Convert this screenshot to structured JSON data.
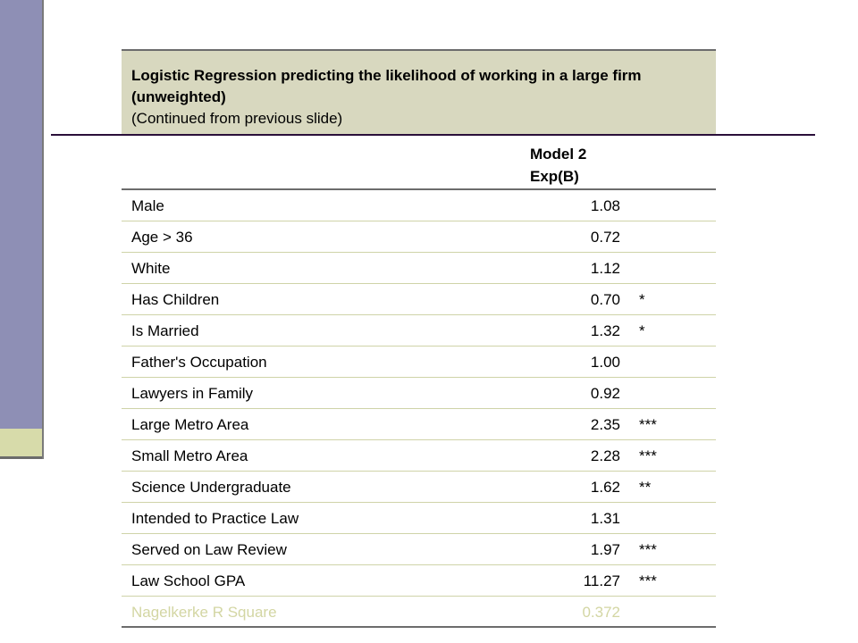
{
  "header": {
    "title": "Logistic Regression predicting the likelihood of working in a large firm (unweighted)",
    "subtitle": "(Continued from previous slide)"
  },
  "column": {
    "model": "Model 2",
    "stat": "Exp(B)"
  },
  "rows": [
    {
      "label": "Male",
      "value": "1.08",
      "sig": ""
    },
    {
      "label": "Age > 36",
      "value": "0.72",
      "sig": ""
    },
    {
      "label": "White",
      "value": "1.12",
      "sig": ""
    },
    {
      "label": "Has Children",
      "value": "0.70",
      "sig": "*"
    },
    {
      "label": "Is Married",
      "value": "1.32",
      "sig": "*"
    },
    {
      "label": "Father's Occupation",
      "value": "1.00",
      "sig": ""
    },
    {
      "label": "Lawyers in Family",
      "value": "0.92",
      "sig": ""
    },
    {
      "label": "Large Metro Area",
      "value": "2.35",
      "sig": "***"
    },
    {
      "label": "Small Metro Area",
      "value": "2.28",
      "sig": "***"
    },
    {
      "label": "Science Undergraduate",
      "value": "1.62",
      "sig": "**"
    },
    {
      "label": "Intended to Practice Law",
      "value": "1.31",
      "sig": ""
    },
    {
      "label": "Served on Law Review",
      "value": "1.97",
      "sig": "***"
    },
    {
      "label": "Law School GPA",
      "value": "11.27",
      "sig": "***"
    },
    {
      "label": "Nagelkerke R Square",
      "value": "0.372",
      "sig": ""
    }
  ],
  "colors": {
    "sidebar": "#8e8fb5",
    "accent_block": "#d7dbaa",
    "header_bg": "#d8d8bf",
    "title_rule": "#2a0f3a",
    "faded_text": "#d3d6a3"
  }
}
